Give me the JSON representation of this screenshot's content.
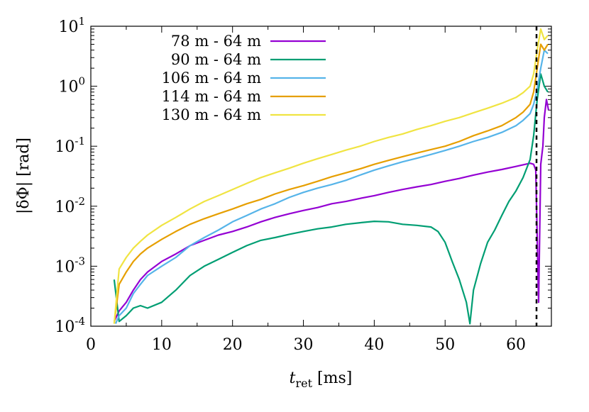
{
  "chart_data": {
    "type": "line",
    "xlabel_main": "t",
    "xlabel_sub": "ret",
    "xlabel_unit": " [ms]",
    "ylabel": "|δΦ| [rad]",
    "xlim": [
      0,
      65
    ],
    "ylim": [
      0.0001,
      10
    ],
    "y_scale": "log",
    "grid": false,
    "legend_position": "top-left",
    "x_ticks": [
      "0",
      "10",
      "20",
      "30",
      "40",
      "50",
      "60"
    ],
    "y_ticks": [
      {
        "base": "10",
        "exp": "-4"
      },
      {
        "base": "10",
        "exp": "-3"
      },
      {
        "base": "10",
        "exp": "-2"
      },
      {
        "base": "10",
        "exp": "-1"
      },
      {
        "base": "10",
        "exp": "0"
      },
      {
        "base": "10",
        "exp": "1"
      }
    ],
    "vline_x": 62.9,
    "series": [
      {
        "name": "78 m - 64 m",
        "color": "#9400d3",
        "x": [
          3.3,
          4,
          5,
          6,
          7,
          8,
          10,
          12,
          14,
          16,
          18,
          20,
          22,
          24,
          26,
          28,
          30,
          32,
          34,
          36,
          38,
          40,
          42,
          44,
          46,
          48,
          50,
          52,
          54,
          56,
          58,
          60,
          61,
          62,
          62.5,
          62.8,
          63.0,
          63.2,
          63.5,
          63.8,
          64.0,
          64.3,
          64.6
        ],
        "y": [
          0.00012,
          0.00018,
          0.00025,
          0.0004,
          0.0006,
          0.0008,
          0.0012,
          0.0016,
          0.0022,
          0.0027,
          0.0033,
          0.0038,
          0.0045,
          0.0055,
          0.0065,
          0.0075,
          0.0085,
          0.0095,
          0.011,
          0.012,
          0.0135,
          0.015,
          0.017,
          0.019,
          0.021,
          0.023,
          0.026,
          0.029,
          0.033,
          0.037,
          0.041,
          0.046,
          0.049,
          0.052,
          0.05,
          0.04,
          0.003,
          0.00025,
          0.05,
          0.1,
          0.3,
          0.6,
          0.4
        ]
      },
      {
        "name": "90 m - 64 m",
        "color": "#009e73",
        "x": [
          3.3,
          4,
          5,
          6,
          7,
          8,
          10,
          12,
          14,
          16,
          18,
          20,
          22,
          24,
          26,
          28,
          30,
          32,
          34,
          36,
          38,
          40,
          42,
          44,
          46,
          48,
          49,
          50,
          51,
          52,
          53,
          53.5,
          54,
          55,
          56,
          57,
          58,
          59,
          60,
          61,
          62,
          62.5,
          63,
          63.5,
          64,
          64.5
        ],
        "y": [
          0.0006,
          0.00012,
          0.00015,
          0.0002,
          0.00022,
          0.0002,
          0.00025,
          0.0004,
          0.0007,
          0.001,
          0.0013,
          0.0017,
          0.0022,
          0.0027,
          0.003,
          0.0034,
          0.0038,
          0.0042,
          0.0045,
          0.005,
          0.0053,
          0.0056,
          0.0055,
          0.005,
          0.0048,
          0.0045,
          0.0038,
          0.0025,
          0.0012,
          0.0006,
          0.00025,
          0.00011,
          0.0004,
          0.0011,
          0.0025,
          0.004,
          0.007,
          0.012,
          0.018,
          0.03,
          0.06,
          0.15,
          0.6,
          1.6,
          1.0,
          0.8
        ]
      },
      {
        "name": "106 m - 64 m",
        "color": "#56b4e9",
        "x": [
          3.5,
          4,
          5,
          6,
          7,
          8,
          10,
          12,
          14,
          16,
          18,
          20,
          22,
          24,
          26,
          28,
          30,
          32,
          34,
          36,
          38,
          40,
          42,
          44,
          46,
          48,
          50,
          52,
          54,
          56,
          58,
          60,
          61,
          62,
          62.5,
          63,
          63.5,
          64,
          64.5
        ],
        "y": [
          0.00011,
          0.00015,
          0.0002,
          0.00035,
          0.0005,
          0.0007,
          0.001,
          0.0014,
          0.0022,
          0.003,
          0.004,
          0.0055,
          0.007,
          0.009,
          0.011,
          0.014,
          0.017,
          0.02,
          0.023,
          0.027,
          0.033,
          0.04,
          0.047,
          0.055,
          0.063,
          0.073,
          0.085,
          0.1,
          0.12,
          0.14,
          0.17,
          0.22,
          0.27,
          0.35,
          0.5,
          0.9,
          2.0,
          4.0,
          3.5
        ]
      },
      {
        "name": "114 m - 64 m",
        "color": "#e69f00",
        "x": [
          3.3,
          4,
          5,
          6,
          7,
          8,
          10,
          12,
          14,
          16,
          18,
          20,
          22,
          24,
          26,
          28,
          30,
          32,
          34,
          36,
          38,
          40,
          42,
          44,
          46,
          48,
          50,
          52,
          54,
          56,
          58,
          60,
          61,
          62,
          62.5,
          63,
          63.5,
          64,
          64.5
        ],
        "y": [
          0.00011,
          0.0005,
          0.0008,
          0.0012,
          0.0016,
          0.002,
          0.0028,
          0.0038,
          0.005,
          0.0062,
          0.0075,
          0.009,
          0.011,
          0.013,
          0.016,
          0.019,
          0.022,
          0.026,
          0.031,
          0.036,
          0.042,
          0.05,
          0.058,
          0.067,
          0.077,
          0.088,
          0.1,
          0.12,
          0.15,
          0.18,
          0.22,
          0.3,
          0.37,
          0.5,
          0.8,
          2.0,
          5.0,
          4.0,
          5.0
        ]
      },
      {
        "name": "130 m - 64 m",
        "color": "#f0e442",
        "x": [
          3.3,
          4,
          5,
          6,
          7,
          8,
          10,
          12,
          14,
          16,
          18,
          20,
          22,
          24,
          26,
          28,
          30,
          32,
          34,
          36,
          38,
          40,
          42,
          44,
          46,
          48,
          50,
          52,
          54,
          56,
          58,
          60,
          61,
          62,
          62.5,
          63,
          63.5,
          64,
          64.5
        ],
        "y": [
          0.00011,
          0.0009,
          0.0014,
          0.002,
          0.0026,
          0.0033,
          0.0048,
          0.0065,
          0.009,
          0.012,
          0.015,
          0.019,
          0.024,
          0.03,
          0.036,
          0.043,
          0.052,
          0.062,
          0.073,
          0.086,
          0.1,
          0.12,
          0.14,
          0.16,
          0.19,
          0.22,
          0.26,
          0.3,
          0.36,
          0.43,
          0.52,
          0.65,
          0.78,
          1.0,
          1.6,
          4.0,
          9.0,
          6.0,
          7.0
        ]
      }
    ]
  }
}
